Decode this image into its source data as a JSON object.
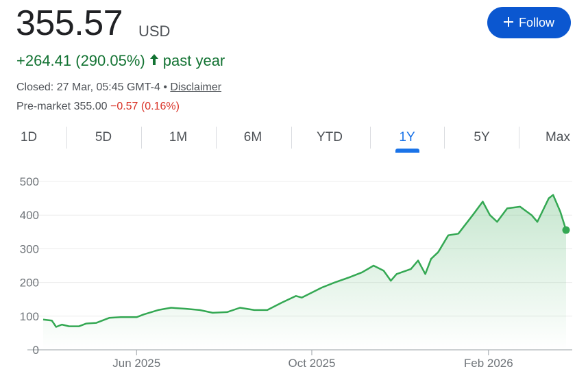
{
  "quote": {
    "price": "355.57",
    "currency": "USD",
    "change": "+264.41 (290.05%)",
    "period": "past year",
    "closed_text": "Closed: 27 Mar, 05:45 GMT-4 •",
    "disclaimer": "Disclaimer",
    "premarket_label": "Pre-market 355.00",
    "premarket_change": "−0.57 (0.16%)"
  },
  "follow": {
    "label": "Follow",
    "icon": "plus-icon"
  },
  "tabs": [
    {
      "label": "1D"
    },
    {
      "label": "5D"
    },
    {
      "label": "1M"
    },
    {
      "label": "6M"
    },
    {
      "label": "YTD"
    },
    {
      "label": "1Y",
      "active": true
    },
    {
      "label": "5Y"
    },
    {
      "label": "Max"
    }
  ],
  "colors": {
    "positive": "#137333",
    "negative": "#d93025",
    "line": "#34a853",
    "accent": "#1a73e8",
    "button": "#0b57d0"
  },
  "chart_data": {
    "type": "area",
    "title": "",
    "xlabel": "",
    "ylabel": "",
    "ylim": [
      0,
      500
    ],
    "yticks": [
      0,
      100,
      200,
      300,
      400,
      500
    ],
    "ytick_labels": [
      "0",
      "100",
      "200",
      "300",
      "400",
      "500"
    ],
    "xlim": [
      "2025-03-28",
      "2026-03-27"
    ],
    "xticks": [
      {
        "date": "2025-06-01",
        "label": "Jun 2025"
      },
      {
        "date": "2025-10-01",
        "label": "Oct 2025"
      },
      {
        "date": "2026-02-01",
        "label": "Feb 2026"
      }
    ],
    "grid": true,
    "series": [
      {
        "name": "Price (USD)",
        "points": [
          [
            "2025-03-28",
            90
          ],
          [
            "2025-04-03",
            87
          ],
          [
            "2025-04-06",
            68
          ],
          [
            "2025-04-10",
            75
          ],
          [
            "2025-04-15",
            70
          ],
          [
            "2025-04-22",
            70
          ],
          [
            "2025-04-27",
            78
          ],
          [
            "2025-05-04",
            80
          ],
          [
            "2025-05-13",
            95
          ],
          [
            "2025-05-21",
            97
          ],
          [
            "2025-06-01",
            97
          ],
          [
            "2025-06-06",
            105
          ],
          [
            "2025-06-16",
            118
          ],
          [
            "2025-06-25",
            125
          ],
          [
            "2025-07-05",
            122
          ],
          [
            "2025-07-15",
            118
          ],
          [
            "2025-07-24",
            110
          ],
          [
            "2025-08-03",
            112
          ],
          [
            "2025-08-12",
            125
          ],
          [
            "2025-08-22",
            118
          ],
          [
            "2025-08-31",
            118
          ],
          [
            "2025-09-10",
            140
          ],
          [
            "2025-09-20",
            160
          ],
          [
            "2025-09-24",
            155
          ],
          [
            "2025-10-01",
            170
          ],
          [
            "2025-10-08",
            185
          ],
          [
            "2025-10-17",
            200
          ],
          [
            "2025-10-27",
            215
          ],
          [
            "2025-11-05",
            230
          ],
          [
            "2025-11-13",
            250
          ],
          [
            "2025-11-20",
            235
          ],
          [
            "2025-11-25",
            205
          ],
          [
            "2025-11-29",
            225
          ],
          [
            "2025-12-09",
            240
          ],
          [
            "2025-12-14",
            265
          ],
          [
            "2025-12-19",
            225
          ],
          [
            "2025-12-23",
            270
          ],
          [
            "2025-12-28",
            290
          ],
          [
            "2026-01-04",
            340
          ],
          [
            "2026-01-11",
            345
          ],
          [
            "2026-01-21",
            400
          ],
          [
            "2026-01-28",
            440
          ],
          [
            "2026-02-02",
            400
          ],
          [
            "2026-02-07",
            380
          ],
          [
            "2026-02-14",
            420
          ],
          [
            "2026-02-23",
            425
          ],
          [
            "2026-03-03",
            400
          ],
          [
            "2026-03-07",
            380
          ],
          [
            "2026-03-15",
            450
          ],
          [
            "2026-03-18",
            460
          ],
          [
            "2026-03-23",
            410
          ],
          [
            "2026-03-27",
            355.57
          ]
        ]
      }
    ]
  }
}
